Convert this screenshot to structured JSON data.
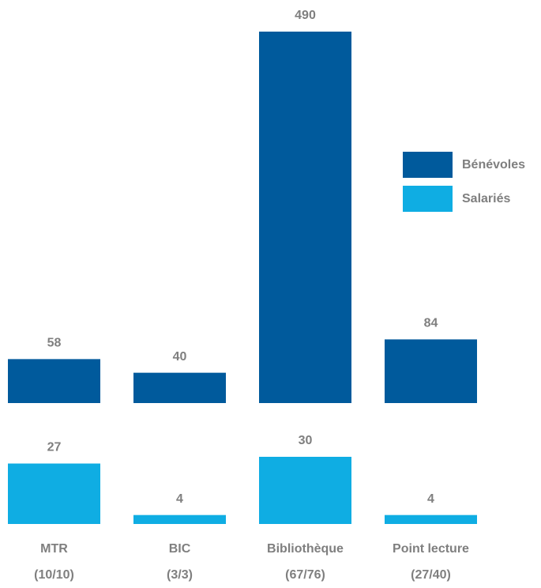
{
  "chart_data": {
    "type": "bar",
    "categories": [
      "MTR\n(10/10)",
      "BIC\n(3/3)",
      "Bibliothèque\n(67/76)",
      "Point lecture\n(27/40)"
    ],
    "series": [
      {
        "name": "Bénévoles",
        "color": "#005a9c",
        "values": [
          58,
          40,
          490,
          84
        ]
      },
      {
        "name": "Salariés",
        "color": "#0fade3",
        "values": [
          27,
          4,
          30,
          4
        ]
      }
    ],
    "legend": "right"
  }
}
